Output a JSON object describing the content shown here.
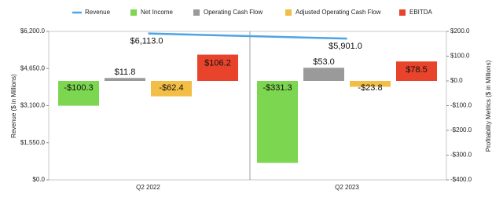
{
  "chart_data": {
    "type": "combo",
    "categories": [
      "Q2 2022",
      "Q2 2023"
    ],
    "y_label": "Revenue ($ in Millions)",
    "y2_label": "Profitability Metrics ($ in Millions)",
    "ylim": [
      0,
      6200
    ],
    "yticks": [
      {
        "value": 0,
        "label": "$0.0"
      },
      {
        "value": 1550,
        "label": "$1,550.0"
      },
      {
        "value": 3100,
        "label": "$3,100.0"
      },
      {
        "value": 4650,
        "label": "$4,650.0"
      },
      {
        "value": 6200,
        "label": "$6,200.0"
      }
    ],
    "y2lim": [
      -400,
      200
    ],
    "y2ticks": [
      {
        "value": -400,
        "label": "-$400.0"
      },
      {
        "value": -300,
        "label": "-$300.0"
      },
      {
        "value": -200,
        "label": "-$200.0"
      },
      {
        "value": -100,
        "label": "-$100.0"
      },
      {
        "value": 0,
        "label": "$0.0"
      },
      {
        "value": 100,
        "label": "$100.0"
      },
      {
        "value": 200,
        "label": "$200.0"
      }
    ],
    "series": [
      {
        "name": "Revenue",
        "type": "line",
        "color": "#4ea4e3",
        "values": [
          6113.0,
          5901.0
        ],
        "value_labels": [
          "$6,113.0",
          "$5,901.0"
        ]
      },
      {
        "name": "Net Income",
        "type": "bar",
        "axis": "y2",
        "color": "#7cd64f",
        "values": [
          -100.3,
          -331.3
        ],
        "value_labels": [
          "-$100.3",
          "-$331.3"
        ]
      },
      {
        "name": "Operating Cash Flow",
        "type": "bar",
        "axis": "y2",
        "color": "#9a9a9a",
        "values": [
          11.8,
          53.0
        ],
        "value_labels": [
          "$11.8",
          "$53.0"
        ]
      },
      {
        "name": "Adjusted Operating Cash Flow",
        "type": "bar",
        "axis": "y2",
        "color": "#f2be45",
        "values": [
          -62.4,
          -23.8
        ],
        "value_labels": [
          "-$62.4",
          "-$23.8"
        ]
      },
      {
        "name": "EBITDA",
        "type": "bar",
        "axis": "y2",
        "color": "#e8432b",
        "values": [
          106.2,
          78.5
        ],
        "value_labels": [
          "$106.2",
          "$78.5"
        ]
      }
    ]
  }
}
